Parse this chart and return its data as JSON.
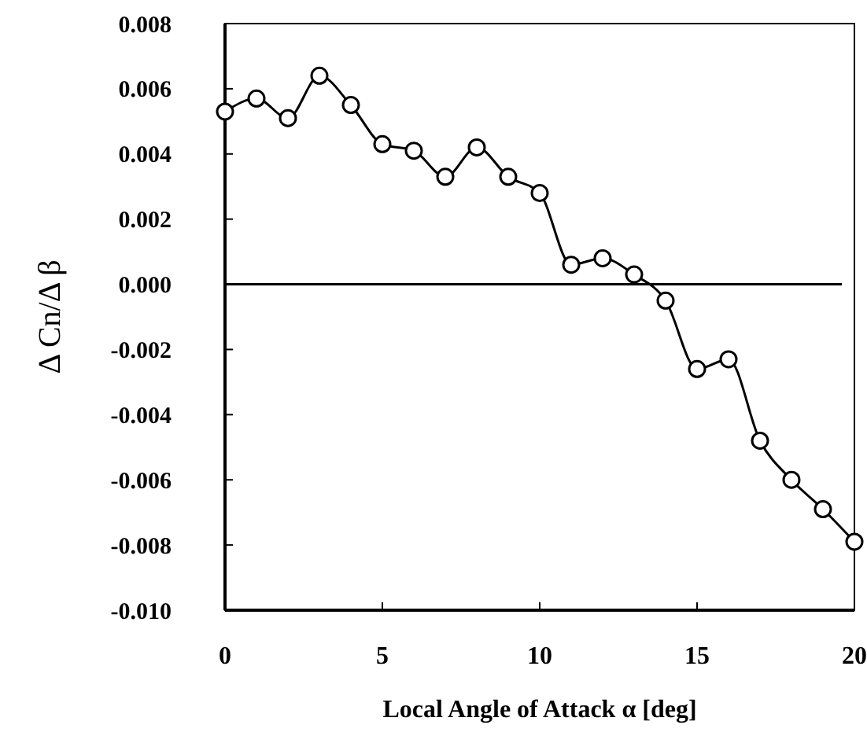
{
  "chart_data": {
    "type": "line",
    "xlabel": "Local Angle of Attack α [deg]",
    "ylabel": "Δ Cn/Δ β",
    "x": [
      0,
      1,
      2,
      3,
      4,
      5,
      6,
      7,
      8,
      9,
      10,
      11,
      12,
      13,
      14,
      15,
      16,
      17,
      18,
      19,
      20
    ],
    "series": [
      {
        "color": "#000000",
        "values": [
          0.0053,
          0.0057,
          0.0051,
          0.0064,
          0.0055,
          0.0043,
          0.0041,
          0.0033,
          0.0042,
          0.0033,
          0.0028,
          0.0006,
          0.0008,
          0.0003,
          -0.0005,
          -0.0026,
          -0.0023,
          -0.0048,
          -0.006,
          -0.0069,
          -0.0079
        ]
      }
    ],
    "xlim": [
      0,
      20
    ],
    "xticks": [
      0,
      5,
      10,
      15,
      20
    ],
    "ylim": [
      -0.01,
      0.008
    ],
    "yticks": [
      {
        "value": -0.01,
        "label": "-0.010"
      },
      {
        "value": -0.008,
        "label": "-0.008"
      },
      {
        "value": -0.006,
        "label": "-0.006"
      },
      {
        "value": -0.004,
        "label": "-0.004"
      },
      {
        "value": -0.002,
        "label": "-0.002"
      },
      {
        "value": 0,
        "label": "0.000"
      },
      {
        "value": 0.002,
        "label": "0.002"
      },
      {
        "value": 0.004,
        "label": "0.004"
      },
      {
        "value": 0.006,
        "label": "0.006"
      },
      {
        "value": 0.008,
        "label": "0.008"
      }
    ],
    "ref_lines": [
      {
        "axis": "y",
        "value": 0,
        "color": "#000000"
      }
    ],
    "marker": "circle",
    "line_style": "solid"
  }
}
